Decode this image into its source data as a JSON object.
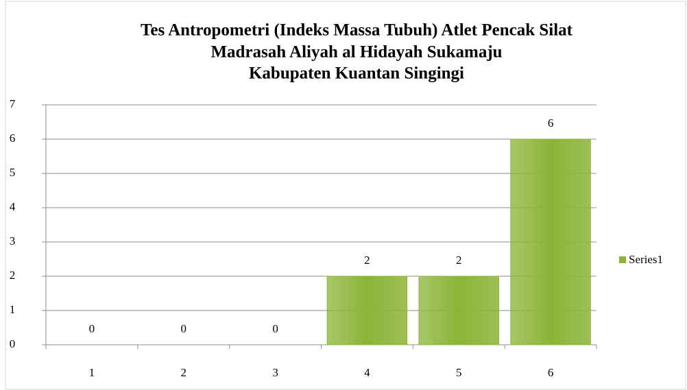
{
  "chart_data": {
    "type": "bar",
    "title": [
      "Tes Antropometri (Indeks Massa Tubuh) Atlet Pencak Silat",
      "Madrasah Aliyah al Hidayah Sukamaju",
      "Kabupaten Kuantan Singingi"
    ],
    "categories": [
      "1",
      "2",
      "3",
      "4",
      "5",
      "6"
    ],
    "series": [
      {
        "name": "Series1",
        "color": "#8bb437",
        "values": [
          0,
          0,
          0,
          2,
          2,
          6
        ]
      }
    ],
    "ylim": [
      0,
      7
    ],
    "yticks": [
      0,
      1,
      2,
      3,
      4,
      5,
      6,
      7
    ],
    "grid": true,
    "legend": "right"
  }
}
